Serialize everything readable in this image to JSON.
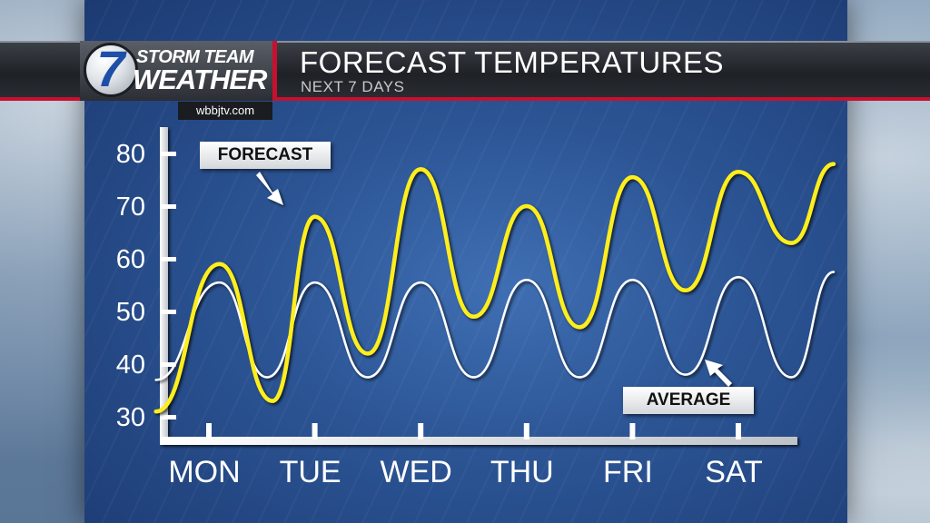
{
  "header": {
    "logo_line1": "STORM TEAM",
    "logo_line2": "WEATHER",
    "logo_number": "7",
    "site": "wbbjtv.com",
    "title": "FORECAST TEMPERATURES",
    "subtitle": "NEXT 7 DAYS"
  },
  "callouts": {
    "forecast": "FORECAST",
    "average": "AVERAGE"
  },
  "colors": {
    "forecast_line": "#ffee1a",
    "average_line": "#ffffff",
    "accent_red": "#c8102e"
  },
  "chart_data": {
    "type": "line",
    "title": "FORECAST TEMPERATURES",
    "subtitle": "NEXT 7 DAYS",
    "categories": [
      "MON",
      "TUE",
      "WED",
      "THU",
      "FRI",
      "SAT"
    ],
    "y_ticks": [
      30,
      40,
      50,
      60,
      70,
      80
    ],
    "ylim": [
      30,
      80
    ],
    "grid": false,
    "series": [
      {
        "name": "FORECAST",
        "x": [
          -0.5,
          0.1,
          0.6,
          1.0,
          1.5,
          2.0,
          2.5,
          3.0,
          3.5,
          4.0,
          4.5,
          5.0,
          5.5,
          5.9
        ],
        "values": [
          31,
          59,
          33,
          68,
          42,
          77,
          49,
          70,
          47,
          75.5,
          54,
          76.5,
          63,
          78
        ]
      },
      {
        "name": "AVERAGE",
        "x": [
          -0.5,
          0.1,
          0.55,
          1.0,
          1.5,
          2.0,
          2.5,
          3.0,
          3.5,
          4.0,
          4.5,
          5.0,
          5.5,
          5.9
        ],
        "values": [
          37,
          55.5,
          37.5,
          55.5,
          37.5,
          55.5,
          37.5,
          56,
          37.5,
          56,
          38,
          56.5,
          37.5,
          57.5
        ]
      }
    ]
  }
}
